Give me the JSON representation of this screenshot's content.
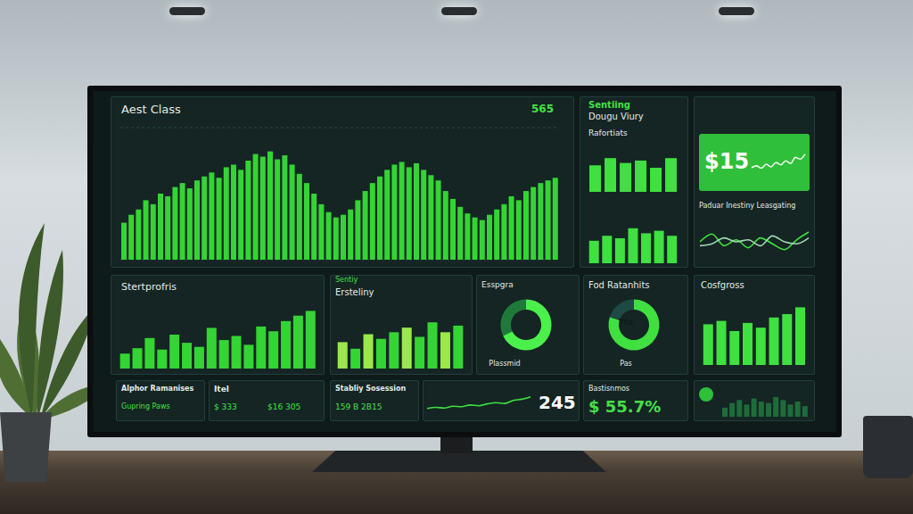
{
  "screen": {
    "texts": [
      "565",
      "Sentiing",
      "Dougu Viury",
      "$15",
      "Sentiy",
      "Plassmid",
      "Yta",
      "Pas",
      "Alphor Ramanises",
      "Gupring Paws",
      "Itel",
      "$ 333",
      "$16 305",
      "Stabliy Sosession",
      "159 B 2B15",
      "245",
      "Bastisnmos",
      "$ 55.7%"
    ]
  },
  "chart_data": [
    {
      "type": "bar",
      "title": "Aest Class",
      "values": [
        28,
        34,
        38,
        45,
        42,
        50,
        48,
        55,
        58,
        54,
        60,
        63,
        66,
        62,
        70,
        72,
        68,
        75,
        80,
        78,
        82,
        76,
        79,
        72,
        65,
        58,
        50,
        42,
        36,
        32,
        34,
        38,
        45,
        52,
        58,
        63,
        68,
        72,
        74,
        70,
        73,
        68,
        64,
        60,
        52,
        46,
        40,
        35,
        32,
        30,
        34,
        38,
        42,
        48,
        45,
        52,
        55,
        58,
        60,
        62
      ],
      "color": "#35d435",
      "ylim": [
        0,
        100
      ],
      "yticks": [
        0,
        25,
        50,
        75,
        100
      ],
      "grid": true,
      "tick_labels": false
    },
    {
      "type": "bar",
      "title": "Rafortiats",
      "values": [
        55,
        70,
        60,
        65,
        50,
        70
      ],
      "color": "#3fe03f",
      "ylim": [
        0,
        100
      ],
      "tick_labels": false
    },
    {
      "type": "bar",
      "values": [
        45,
        55,
        50,
        70,
        60,
        65,
        55
      ],
      "color": "#3fe03f",
      "ylim": [
        0,
        100
      ],
      "tick_labels": false
    },
    {
      "type": "line",
      "values": [
        40,
        45,
        38,
        50,
        42,
        55,
        48,
        60,
        52,
        70,
        65,
        80
      ],
      "color": "#eaffea",
      "ylim": [
        0,
        100
      ],
      "tick_labels": false
    },
    {
      "type": "line",
      "title": "Paduar Inestiny Leasgating",
      "series": [
        {
          "color": "#3fe03f",
          "values": [
            50,
            70,
            40,
            55,
            35,
            60,
            45,
            30,
            55,
            75
          ]
        },
        {
          "color": "#9fd8b0",
          "values": [
            40,
            45,
            60,
            50,
            55,
            40,
            65,
            50,
            45,
            60
          ]
        }
      ],
      "ylim": [
        0,
        100
      ],
      "tick_labels": false
    },
    {
      "type": "bar",
      "title": "Stertprofris",
      "values": [
        22,
        30,
        45,
        28,
        50,
        38,
        32,
        60,
        42,
        48,
        35,
        62,
        55,
        70,
        78,
        85
      ],
      "color": "#35d435",
      "ylim": [
        0,
        100
      ],
      "tick_labels": false
    },
    {
      "type": "bar",
      "title": "Ersteliny",
      "values": [
        40,
        30,
        52,
        45,
        55,
        62,
        48,
        70,
        55,
        65
      ],
      "colors": [
        "#9be84a",
        "#35d435",
        "#9be84a",
        "#35d435",
        "#35d435",
        "#9be84a",
        "#35d435",
        "#35d435",
        "#9be84a",
        "#35d435"
      ],
      "ylim": [
        0,
        100
      ],
      "tick_labels": false
    },
    {
      "type": "pie",
      "title": "Esspgra",
      "values": [
        68,
        32
      ],
      "colors": [
        "#4cf04c",
        "#1f7a3a"
      ]
    },
    {
      "type": "pie",
      "title": "Fod Ratanhits",
      "values": [
        80,
        20
      ],
      "colors": [
        "#3fe03f",
        "#1e4a44"
      ]
    },
    {
      "type": "bar",
      "title": "Cosfgross",
      "values": [
        60,
        65,
        50,
        62,
        55,
        70,
        75,
        85
      ],
      "color": "#3fe03f",
      "ylim": [
        0,
        100
      ],
      "tick_labels": false
    },
    {
      "type": "line",
      "values": [
        20,
        25,
        22,
        30,
        28,
        35,
        32,
        40,
        45,
        42,
        55,
        60,
        70
      ],
      "color": "#3fe03f",
      "ylim": [
        0,
        100
      ],
      "tick_labels": false
    },
    {
      "type": "bar",
      "values": [
        30,
        45,
        55,
        40,
        60,
        50,
        45,
        65,
        55,
        40,
        50,
        35
      ],
      "color": "#1f6b3a",
      "ylim": [
        0,
        100
      ],
      "tick_labels": false
    }
  ]
}
